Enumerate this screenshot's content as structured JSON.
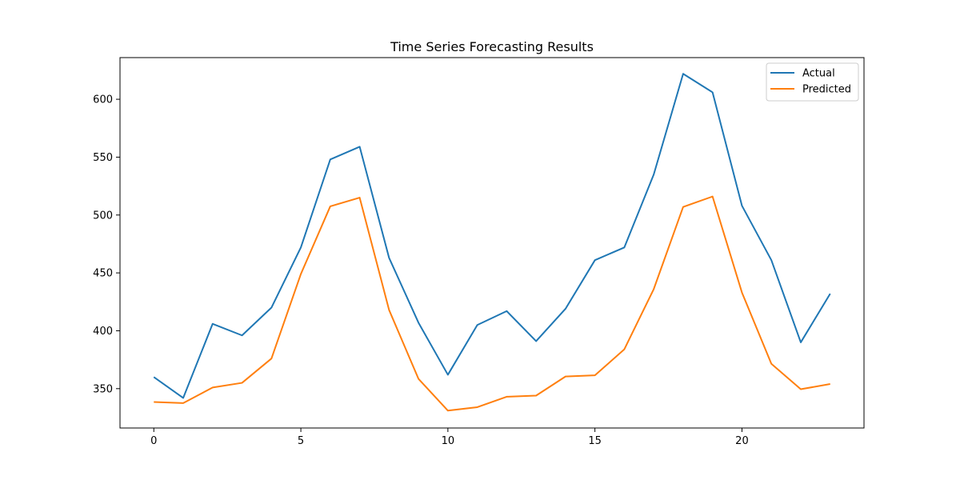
{
  "chart_data": {
    "type": "line",
    "title": "Time Series Forecasting Results",
    "xlabel": "",
    "ylabel": "",
    "x": [
      0,
      1,
      2,
      3,
      4,
      5,
      6,
      7,
      8,
      9,
      10,
      11,
      12,
      13,
      14,
      15,
      16,
      17,
      18,
      19,
      20,
      21,
      22,
      23
    ],
    "xlim": [
      -1.15,
      24.15
    ],
    "ylim": [
      316,
      636
    ],
    "xticks": [
      0,
      5,
      10,
      15,
      20
    ],
    "yticks": [
      350,
      400,
      450,
      500,
      550,
      600
    ],
    "grid": false,
    "legend_position": "top-right",
    "series": [
      {
        "name": "Actual",
        "color": "#1f77b4",
        "values": [
          360,
          342,
          406,
          396,
          420,
          472,
          548,
          559,
          463,
          407,
          362,
          405,
          417,
          391,
          419,
          461,
          472,
          535,
          622,
          606,
          508,
          461,
          390,
          432
        ]
      },
      {
        "name": "Predicted",
        "color": "#ff7f0e",
        "values": [
          338.5,
          337.5,
          351,
          355,
          376,
          449,
          507.5,
          515,
          418,
          358.5,
          331,
          334,
          343,
          344,
          360.5,
          361.5,
          384,
          436,
          507,
          516,
          433,
          371.5,
          349.5,
          354
        ]
      }
    ]
  }
}
